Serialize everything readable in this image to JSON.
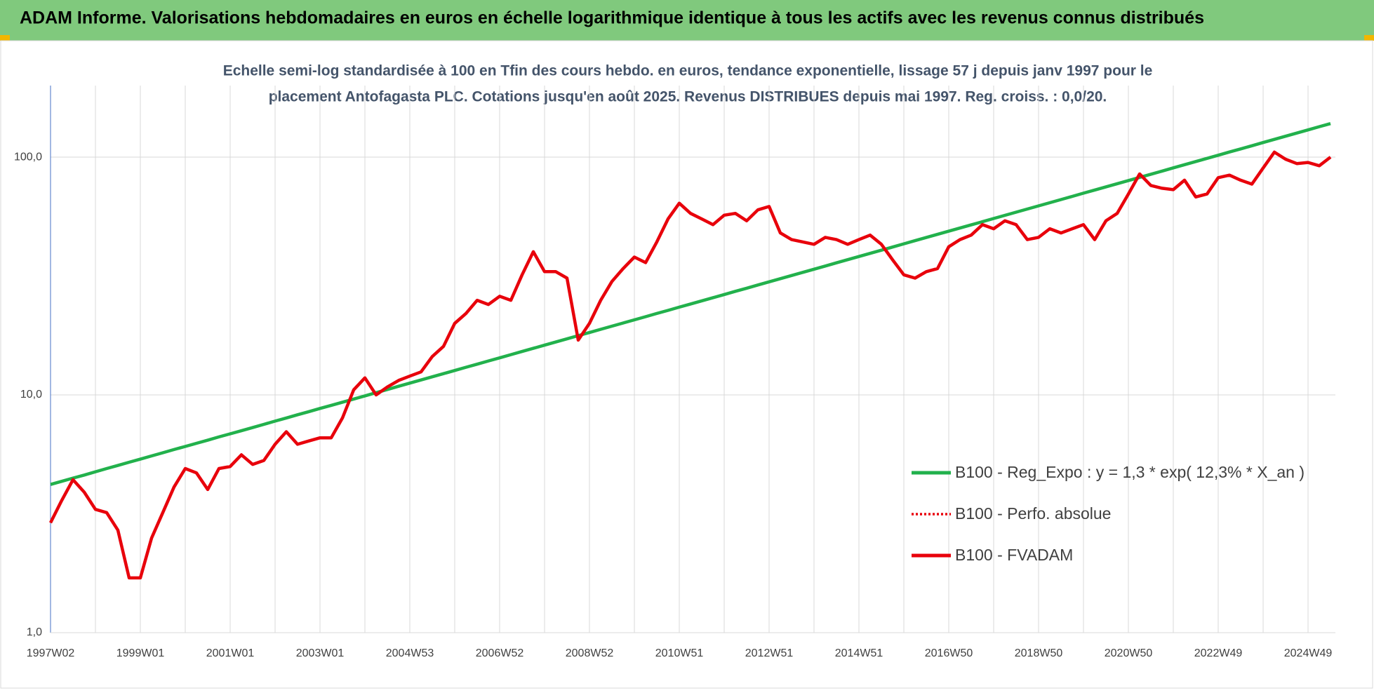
{
  "header": {
    "title": "ADAM Informe. Valorisations hebdomadaires en euros en échelle logarithmique identique à tous les actifs avec les revenus connus distribués"
  },
  "chart_data": {
    "type": "line",
    "title": "Echelle semi-log standardisée à 100 en Tfin des cours hebdo. en euros, tendance exponentielle, lissage 57 j depuis janv 1997 pour le",
    "subtitle": "placement Antofagasta PLC. Cotations jusqu'en août 2025. Revenus DISTRIBUES depuis mai 1997. Reg. croiss. : 0,0/20.",
    "log_scale": true,
    "grid": true,
    "legend": "right",
    "categories": [
      "1997W02",
      null,
      null,
      null,
      null,
      null,
      null,
      null,
      "1999W01",
      null,
      null,
      null,
      null,
      null,
      null,
      null,
      "2001W01",
      null,
      null,
      null,
      null,
      null,
      null,
      null,
      "2003W01",
      null,
      null,
      null,
      null,
      null,
      null,
      null,
      "2004W53",
      null,
      null,
      null,
      null,
      null,
      null,
      null,
      "2006W52",
      null,
      null,
      null,
      null,
      null,
      null,
      null,
      "2008W52",
      null,
      null,
      null,
      null,
      null,
      null,
      null,
      "2010W51",
      null,
      null,
      null,
      null,
      null,
      null,
      null,
      "2012W51",
      null,
      null,
      null,
      null,
      null,
      null,
      null,
      "2014W51",
      null,
      null,
      null,
      null,
      null,
      null,
      null,
      "2016W50",
      null,
      null,
      null,
      null,
      null,
      null,
      null,
      "2018W50",
      null,
      null,
      null,
      null,
      null,
      null,
      null,
      "2020W50",
      null,
      null,
      null,
      null,
      null,
      null,
      null,
      "2022W49",
      null,
      null,
      null,
      null,
      null,
      null,
      null,
      "2024W49",
      null,
      null
    ],
    "ylim": [
      1,
      200
    ],
    "yticks": [
      {
        "value": 1,
        "label": "1,0"
      },
      {
        "value": 10,
        "label": "10,0"
      },
      {
        "value": 100,
        "label": "100,0"
      }
    ],
    "series": [
      {
        "name": "B100 - Reg_Expo : y = 1,3 * exp( 12,3% *  X_an )",
        "color": "#22b14c",
        "style": "solid",
        "values": [
          4.2,
          4.33,
          4.47,
          4.6,
          4.75,
          4.9,
          5.05,
          5.21,
          5.37,
          5.54,
          5.71,
          5.89,
          6.07,
          6.26,
          6.45,
          6.66,
          6.86,
          7.07,
          7.29,
          7.52,
          7.76,
          8.0,
          8.25,
          8.5,
          8.77,
          9.04,
          9.32,
          9.61,
          9.91,
          10.22,
          10.54,
          10.87,
          11.21,
          11.56,
          11.92,
          12.29,
          12.67,
          13.07,
          13.47,
          13.89,
          14.32,
          14.77,
          15.23,
          15.7,
          16.19,
          16.69,
          17.21,
          17.75,
          18.3,
          18.87,
          19.46,
          20.06,
          20.69,
          21.33,
          22.0,
          22.68,
          23.39,
          24.12,
          24.87,
          25.64,
          26.44,
          27.27,
          28.11,
          28.99,
          29.89,
          30.82,
          31.78,
          32.77,
          33.79,
          34.84,
          35.93,
          37.05,
          38.2,
          39.39,
          40.61,
          41.88,
          43.19,
          44.53,
          45.92,
          47.35,
          48.82,
          50.34,
          51.91,
          53.52,
          55.19,
          56.91,
          58.68,
          60.51,
          62.39,
          64.33,
          66.33,
          68.4,
          70.53,
          72.73,
          75.0,
          77.33,
          79.73,
          82.21,
          84.77,
          87.41,
          90.13,
          92.94,
          95.83,
          98.82,
          101.9,
          105.1,
          108.3,
          111.7,
          115.2,
          118.8,
          122.5,
          126.3,
          130.2,
          134.3,
          138.4
        ]
      },
      {
        "name": "B100 - Perfo. absolue",
        "color": "#e8000b",
        "style": "dotted",
        "values": [
          2.9,
          3.6,
          4.4,
          3.9,
          3.3,
          3.2,
          2.7,
          1.7,
          1.7,
          2.5,
          3.2,
          4.1,
          4.9,
          4.7,
          4.0,
          4.9,
          5.0,
          5.6,
          5.1,
          5.3,
          6.2,
          7.0,
          6.2,
          6.4,
          6.6,
          6.6,
          8.0,
          10.5,
          11.8,
          10.0,
          10.8,
          11.5,
          12.0,
          12.5,
          14.5,
          16,
          20,
          22,
          25,
          24,
          26,
          25,
          32,
          40,
          33,
          33,
          31,
          17,
          20,
          25,
          30,
          34,
          38,
          36,
          44,
          55,
          64,
          58,
          55,
          52,
          57,
          58,
          54,
          60,
          62,
          48,
          45,
          44,
          43,
          46,
          45,
          43,
          45,
          47,
          43,
          37,
          32,
          31,
          33,
          34,
          42,
          45,
          47,
          52,
          50,
          54,
          52,
          45,
          46,
          50,
          48,
          50,
          52,
          45,
          54,
          58,
          70,
          85,
          76,
          74,
          73,
          80,
          68,
          70,
          82,
          84,
          80,
          77,
          90,
          105,
          98,
          94,
          95,
          92,
          100
        ]
      },
      {
        "name": "B100 - FVADAM",
        "color": "#e8000b",
        "style": "solid",
        "values": [
          2.9,
          3.6,
          4.4,
          3.9,
          3.3,
          3.2,
          2.7,
          1.7,
          1.7,
          2.5,
          3.2,
          4.1,
          4.9,
          4.7,
          4.0,
          4.9,
          5.0,
          5.6,
          5.1,
          5.3,
          6.2,
          7.0,
          6.2,
          6.4,
          6.6,
          6.6,
          8.0,
          10.5,
          11.8,
          10.0,
          10.8,
          11.5,
          12.0,
          12.5,
          14.5,
          16,
          20,
          22,
          25,
          24,
          26,
          25,
          32,
          40,
          33,
          33,
          31,
          17,
          20,
          25,
          30,
          34,
          38,
          36,
          44,
          55,
          64,
          58,
          55,
          52,
          57,
          58,
          54,
          60,
          62,
          48,
          45,
          44,
          43,
          46,
          45,
          43,
          45,
          47,
          43,
          37,
          32,
          31,
          33,
          34,
          42,
          45,
          47,
          52,
          50,
          54,
          52,
          45,
          46,
          50,
          48,
          50,
          52,
          45,
          54,
          58,
          70,
          85,
          76,
          74,
          73,
          80,
          68,
          70,
          82,
          84,
          80,
          77,
          90,
          105,
          98,
          94,
          95,
          92,
          100
        ]
      }
    ]
  }
}
